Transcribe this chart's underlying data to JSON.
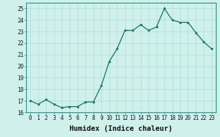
{
  "x": [
    0,
    1,
    2,
    3,
    4,
    5,
    6,
    7,
    8,
    9,
    10,
    11,
    12,
    13,
    14,
    15,
    16,
    17,
    18,
    19,
    20,
    21,
    22,
    23
  ],
  "y": [
    17.0,
    16.7,
    17.1,
    16.7,
    16.4,
    16.5,
    16.5,
    16.9,
    16.9,
    18.3,
    20.4,
    21.5,
    23.1,
    23.1,
    23.6,
    23.1,
    23.4,
    25.0,
    24.0,
    23.8,
    23.8,
    22.9,
    22.1,
    21.5
  ],
  "line_color": "#1a7a6e",
  "marker": "o",
  "marker_size": 2.2,
  "linewidth": 1.0,
  "bg_color": "#cff0eb",
  "grid_color": "#aaddda",
  "xlabel": "Humidex (Indice chaleur)",
  "ylabel": "",
  "ylim": [
    16,
    25.5
  ],
  "xlim": [
    -0.5,
    23.5
  ],
  "yticks": [
    16,
    17,
    18,
    19,
    20,
    21,
    22,
    23,
    24,
    25
  ],
  "xticks": [
    0,
    1,
    2,
    3,
    4,
    5,
    6,
    7,
    8,
    9,
    10,
    11,
    12,
    13,
    14,
    15,
    16,
    17,
    18,
    19,
    20,
    21,
    22,
    23
  ],
  "tick_fontsize": 5.5,
  "xlabel_fontsize": 7.5,
  "spine_color": "#2a8a7e"
}
